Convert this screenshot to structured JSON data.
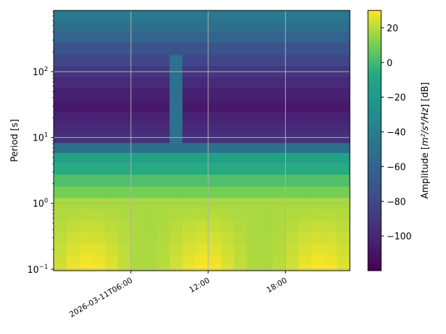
{
  "chart_data": {
    "type": "heatmap",
    "title": "",
    "xlabel": "",
    "ylabel": "Period [s]",
    "y_scale": "log",
    "ylim": [
      0.095,
      850
    ],
    "xlim": [
      "2026-03-11T00:00",
      "2026-03-11T23:00"
    ],
    "x_ticks": [
      {
        "time": "2026-03-11T06:00",
        "label": "2026-03-11T06:00"
      },
      {
        "time": "2026-03-11T12:00",
        "label": "12:00"
      },
      {
        "time": "2026-03-11T18:00",
        "label": "18:00"
      }
    ],
    "y_ticks": [
      {
        "value": 0.1,
        "base": "10",
        "exp": "−1"
      },
      {
        "value": 1,
        "base": "10",
        "exp": "0"
      },
      {
        "value": 10,
        "base": "10",
        "exp": "1"
      },
      {
        "value": 100,
        "base": "10",
        "exp": "2"
      }
    ],
    "grid": true,
    "colormap": "viridis",
    "colorbar": {
      "label_text": "Amplitude [",
      "label_unit_html": "m²/s⁴/Hz",
      "label_tail": "] [dB]",
      "range": [
        -120,
        30
      ],
      "ticks": [
        {
          "value": 20,
          "label": "20"
        },
        {
          "value": 0,
          "label": "0"
        },
        {
          "value": -20,
          "label": "−20"
        },
        {
          "value": -40,
          "label": "−40"
        },
        {
          "value": -60,
          "label": "−60"
        },
        {
          "value": -80,
          "label": "−80"
        },
        {
          "value": -100,
          "label": "−100"
        }
      ]
    },
    "period_bins": [
      0.1,
      0.14,
      0.2,
      0.3,
      0.45,
      0.7,
      1.0,
      1.5,
      2.2,
      3.5,
      5,
      7,
      10,
      14,
      20,
      30,
      45,
      70,
      100,
      150,
      220,
      350,
      500,
      700
    ],
    "time_bins": [
      "00:00",
      "01:00",
      "02:00",
      "03:00",
      "04:00",
      "05:00",
      "06:00",
      "07:00",
      "08:00",
      "09:00",
      "10:00",
      "11:00",
      "12:00",
      "13:00",
      "14:00",
      "15:00",
      "16:00",
      "17:00",
      "18:00",
      "19:00",
      "20:00",
      "21:00",
      "22:00"
    ],
    "colors": {
      "grid": "#b0b0b0",
      "axes": "#000000"
    }
  }
}
